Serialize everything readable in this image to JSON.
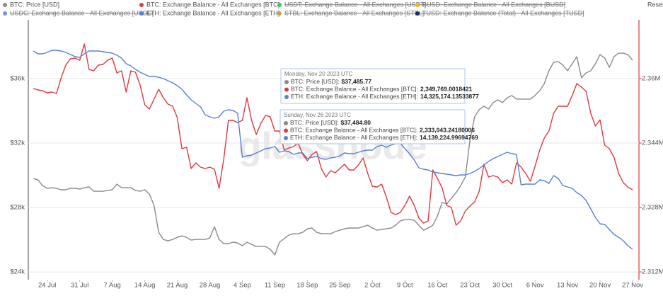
{
  "chart_data": {
    "type": "line",
    "reset_label": "Reset zoom",
    "watermark": "glassnode",
    "x": [
      "21 Jul",
      "22 Jul",
      "23 Jul",
      "24 Jul",
      "25 Jul",
      "26 Jul",
      "27 Jul",
      "28 Jul",
      "29 Jul",
      "30 Jul",
      "31 Jul",
      "1 Aug",
      "2 Aug",
      "3 Aug",
      "4 Aug",
      "5 Aug",
      "6 Aug",
      "7 Aug",
      "8 Aug",
      "9 Aug",
      "10 Aug",
      "11 Aug",
      "12 Aug",
      "13 Aug",
      "14 Aug",
      "15 Aug",
      "16 Aug",
      "17 Aug",
      "18 Aug",
      "19 Aug",
      "20 Aug",
      "21 Aug",
      "22 Aug",
      "23 Aug",
      "24 Aug",
      "25 Aug",
      "26 Aug",
      "27 Aug",
      "28 Aug",
      "29 Aug",
      "30 Aug",
      "31 Aug",
      "1 Sep",
      "2 Sep",
      "3 Sep",
      "4 Sep",
      "5 Sep",
      "6 Sep",
      "7 Sep",
      "8 Sep",
      "9 Sep",
      "10 Sep",
      "11 Sep",
      "12 Sep",
      "13 Sep",
      "14 Sep",
      "15 Sep",
      "16 Sep",
      "17 Sep",
      "18 Sep",
      "19 Sep",
      "20 Sep",
      "21 Sep",
      "22 Sep",
      "23 Sep",
      "24 Sep",
      "25 Sep",
      "26 Sep",
      "27 Sep",
      "28 Sep",
      "29 Sep",
      "30 Sep",
      "1 Oct",
      "2 Oct",
      "3 Oct",
      "4 Oct",
      "5 Oct",
      "6 Oct",
      "7 Oct",
      "8 Oct",
      "9 Oct",
      "10 Oct",
      "11 Oct",
      "12 Oct",
      "13 Oct",
      "14 Oct",
      "15 Oct",
      "16 Oct",
      "17 Oct",
      "18 Oct",
      "19 Oct",
      "20 Oct",
      "21 Oct",
      "22 Oct",
      "23 Oct",
      "24 Oct",
      "25 Oct",
      "26 Oct",
      "27 Oct",
      "28 Oct",
      "29 Oct",
      "30 Oct",
      "31 Oct",
      "1 Nov",
      "2 Nov",
      "3 Nov",
      "4 Nov",
      "5 Nov",
      "6 Nov",
      "7 Nov",
      "8 Nov",
      "9 Nov",
      "10 Nov",
      "11 Nov",
      "12 Nov",
      "13 Nov",
      "14 Nov",
      "15 Nov",
      "16 Nov",
      "17 Nov",
      "18 Nov",
      "19 Nov",
      "20 Nov",
      "21 Nov",
      "22 Nov",
      "23 Nov",
      "24 Nov",
      "25 Nov",
      "26 Nov",
      "27 Nov"
    ],
    "xticks": [
      "24 Jul",
      "31 Jul",
      "7 Aug",
      "14 Aug",
      "21 Aug",
      "28 Aug",
      "4 Sep",
      "11 Sep",
      "18 Sep",
      "25 Sep",
      "2 Oct",
      "9 Oct",
      "16 Oct",
      "23 Oct",
      "30 Oct",
      "6 Nov",
      "13 Nov",
      "20 Nov",
      "27 Nov"
    ],
    "ylim": [
      23520,
      39560
    ],
    "yticks": [
      {
        "value": 24000,
        "label": "$24k"
      },
      {
        "value": 28000,
        "label": "$28k"
      },
      {
        "value": 32000,
        "label": "$32k"
      },
      {
        "value": 36000,
        "label": "$36k"
      }
    ],
    "y2lim": [
      2310070,
      2374230
    ],
    "y2ticks": [
      {
        "value": 2312000,
        "label": "2.312M"
      },
      {
        "value": 2328000,
        "label": "2.328M"
      },
      {
        "value": 2344000,
        "label": "2.344M"
      },
      {
        "value": 2360000,
        "label": "2.36M"
      }
    ],
    "y3lim": [
      13851000,
      16041000
    ],
    "y2_color": "#e0393e",
    "grid": true,
    "series": [
      {
        "name": "BTC: Price [USD]",
        "color": "#8a8a8a",
        "axis": "y",
        "values": [
          29800,
          29720,
          29360,
          29190,
          29230,
          29190,
          29100,
          29100,
          29190,
          29190,
          29140,
          29230,
          29280,
          29010,
          29010,
          29010,
          29060,
          29100,
          29450,
          29230,
          29230,
          29230,
          29060,
          29010,
          29100,
          28840,
          28130,
          26460,
          26020,
          25930,
          26020,
          26150,
          26240,
          26150,
          25980,
          26020,
          26020,
          26020,
          26110,
          26810,
          26020,
          25760,
          25760,
          25850,
          25800,
          25630,
          25850,
          25710,
          25580,
          25580,
          25580,
          25410,
          25060,
          25850,
          26070,
          26290,
          26370,
          26370,
          26460,
          26680,
          26730,
          26460,
          26370,
          26370,
          26370,
          26510,
          26590,
          26680,
          26730,
          26730,
          26730,
          26810,
          26900,
          26730,
          26590,
          26640,
          26680,
          26730,
          26900,
          27170,
          27250,
          27250,
          27210,
          26900,
          26590,
          26730,
          26900,
          27470,
          28310,
          28220,
          28570,
          28920,
          29360,
          29890,
          32180,
          33630,
          34070,
          34290,
          34110,
          34510,
          34680,
          34510,
          34810,
          34950,
          34730,
          34730,
          34730,
          34730,
          34950,
          35250,
          35690,
          36490,
          37010,
          37060,
          36840,
          36490,
          36920,
          37360,
          36050,
          36350,
          36490,
          36920,
          37485.77,
          37280,
          36700,
          37360,
          37580,
          37580,
          37484.8,
          37140
        ]
      },
      {
        "name": "BTC: Exchange Balance - All Exchanges [BTC]",
        "color": "#e0393e",
        "axis": "y2",
        "values": [
          2357530,
          2357180,
          2357000,
          2356480,
          2356650,
          2356300,
          2360170,
          2363330,
          2364920,
          2365090,
          2364560,
          2368610,
          2362280,
          2361930,
          2363330,
          2363510,
          2364560,
          2365090,
          2361400,
          2361930,
          2356650,
          2361930,
          2361580,
          2358410,
          2353490,
          2352430,
          2354900,
          2357360,
          2355250,
          2353670,
          2353140,
          2350320,
          2342590,
          2342940,
          2337670,
          2339070,
          2338020,
          2337670,
          2338020,
          2337490,
          2332740,
          2339950,
          2349620,
          2349620,
          2349090,
          2349620,
          2355250,
          2349620,
          2346110,
          2348920,
          2350850,
          2350500,
          2346980,
          2346980,
          2342240,
          2342770,
          2343120,
          2344000,
          2341180,
          2339600,
          2341180,
          2341890,
          2337670,
          2335560,
          2337140,
          2336610,
          2337670,
          2338720,
          2337320,
          2337320,
          2338550,
          2340300,
          2336440,
          2333270,
          2333100,
          2333800,
          2330640,
          2326770,
          2326240,
          2326770,
          2328530,
          2330810,
          2328530,
          2325360,
          2324130,
          2324660,
          2337320,
          2335210,
          2332920,
          2328530,
          2328000,
          2323600,
          2324660,
          2327120,
          2328350,
          2329400,
          2332040,
          2338720,
          2335560,
          2335910,
          2335560,
          2334150,
          2334850,
          2333800,
          2339070,
          2338020,
          2336440,
          2334500,
          2338190,
          2342240,
          2345230,
          2346980,
          2351380,
          2353140,
          2353140,
          2353140,
          2355770,
          2358760,
          2357880,
          2356830,
          2351380,
          2348210,
          2349769.0018421,
          2343470,
          2342590,
          2340480,
          2336440,
          2334150,
          2333043.24180006,
          2332390
        ]
      },
      {
        "name": "ETH: Exchange Balance - All Exchanges [ETH]",
        "color": "#5b7fd6",
        "axis": "y3",
        "values": [
          15789000,
          15765000,
          15765000,
          15777000,
          15795000,
          15795000,
          15789000,
          15777000,
          15759000,
          15741000,
          15735000,
          15765000,
          15789000,
          15789000,
          15789000,
          15783000,
          15777000,
          15771000,
          15753000,
          15729000,
          15681000,
          15663000,
          15633000,
          15609000,
          15591000,
          15573000,
          15573000,
          15567000,
          15555000,
          15537000,
          15519000,
          15495000,
          15465000,
          15417000,
          15375000,
          15345000,
          15315000,
          15249000,
          15231000,
          15219000,
          15231000,
          15279000,
          15291000,
          15285000,
          15261000,
          14889000,
          14901000,
          14907000,
          14925000,
          14943000,
          14961000,
          14967000,
          14979000,
          14931000,
          14943000,
          14937000,
          14913000,
          14925000,
          14925000,
          14877000,
          14889000,
          14895000,
          14877000,
          14871000,
          14883000,
          14889000,
          14901000,
          14925000,
          14919000,
          14919000,
          14931000,
          14943000,
          14949000,
          14949000,
          14979000,
          14991000,
          14973000,
          14991000,
          15003000,
          15009000,
          14961000,
          14919000,
          14865000,
          14799000,
          14787000,
          14781000,
          14763000,
          14757000,
          14751000,
          14745000,
          14739000,
          14733000,
          14739000,
          14739000,
          14751000,
          14769000,
          14793000,
          14823000,
          14853000,
          14877000,
          14895000,
          14913000,
          14931000,
          14919000,
          14913000,
          14655000,
          14661000,
          14661000,
          14661000,
          14697000,
          14691000,
          14667000,
          14733000,
          14709000,
          14649000,
          14637000,
          14625000,
          14589000,
          14565000,
          14523000,
          14451000,
          14379000,
          14325174.13533877,
          14319000,
          14277000,
          14235000,
          14211000,
          14181000,
          14139224.99694769,
          14109000
        ]
      }
    ],
    "disabled_series": [
      {
        "name": "USDT: Exchange Balance - All Exchanges [USDT]",
        "color": "#2ecc71"
      },
      {
        "name": "BUSD: Exchange Balance - All Exchanges [BUSD]",
        "color": "#f0b90b"
      },
      {
        "name": "USDC: Exchange Balance - All Exchanges [USDC]",
        "color": "#7a8fe6"
      },
      {
        "name": "STBL: Exchange Balance - All Exchanges [STBL]",
        "color": "#c9a24e"
      },
      {
        "name": "TUSD: Exchange Balance (Total) - All Exchanges [TUSD]",
        "color": "#1c2a66"
      }
    ],
    "tooltips": [
      {
        "date": "Monday, Nov 20 2023 UTC",
        "rows": [
          {
            "label": "BTC: Price [USD]:",
            "value": "$37,485.77"
          },
          {
            "label": "BTC: Exchange Balance - All Exchanges [BTC]:",
            "value": "2,349,769.0018421"
          },
          {
            "label": "ETH: Exchange Balance - All Exchanges [ETH]:",
            "value": "14,325,174.13533877"
          }
        ]
      },
      {
        "date": "Sunday, Nov 26 2023 UTC",
        "rows": [
          {
            "label": "BTC: Price [USD]:",
            "value": "$37,484.80"
          },
          {
            "label": "BTC: Exchange Balance - All Exchanges [BTC]:",
            "value": "2,333,043.24180006"
          },
          {
            "label": "ETH: Exchange Balance - All Exchanges [ETH]:",
            "value": "14,139,224.99694769"
          }
        ]
      }
    ]
  }
}
